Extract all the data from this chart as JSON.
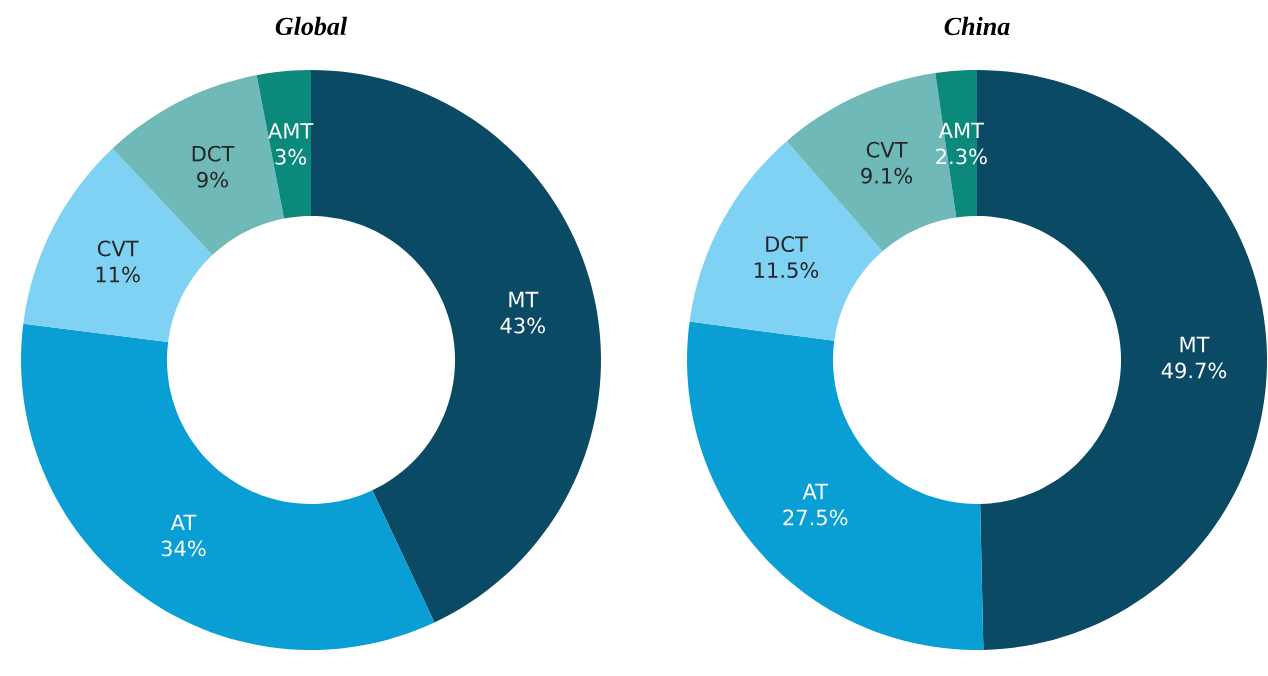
{
  "chart_data": [
    {
      "type": "donut",
      "title": "Global",
      "categories": [
        "MT",
        "AT",
        "CVT",
        "DCT",
        "AMT"
      ],
      "values": [
        43,
        34,
        11,
        9,
        3
      ],
      "value_labels": [
        "43%",
        "34%",
        "11%",
        "9%",
        "3%"
      ],
      "colors": [
        "#0b4a64",
        "#0a9fd4",
        "#7fd2f4",
        "#6fb9b8",
        "#0b8a7c"
      ]
    },
    {
      "type": "donut",
      "title": "China",
      "categories": [
        "MT",
        "AT",
        "DCT",
        "CVT",
        "AMT"
      ],
      "values": [
        49.7,
        27.5,
        11.5,
        9.1,
        2.3
      ],
      "value_labels": [
        "49.7%",
        "27.5%",
        "11.5%",
        "9.1%",
        "2.3%"
      ],
      "colors": [
        "#0b4a64",
        "#0a9fd4",
        "#7fd2f4",
        "#6fb9b8",
        "#0b8a7c"
      ]
    }
  ]
}
